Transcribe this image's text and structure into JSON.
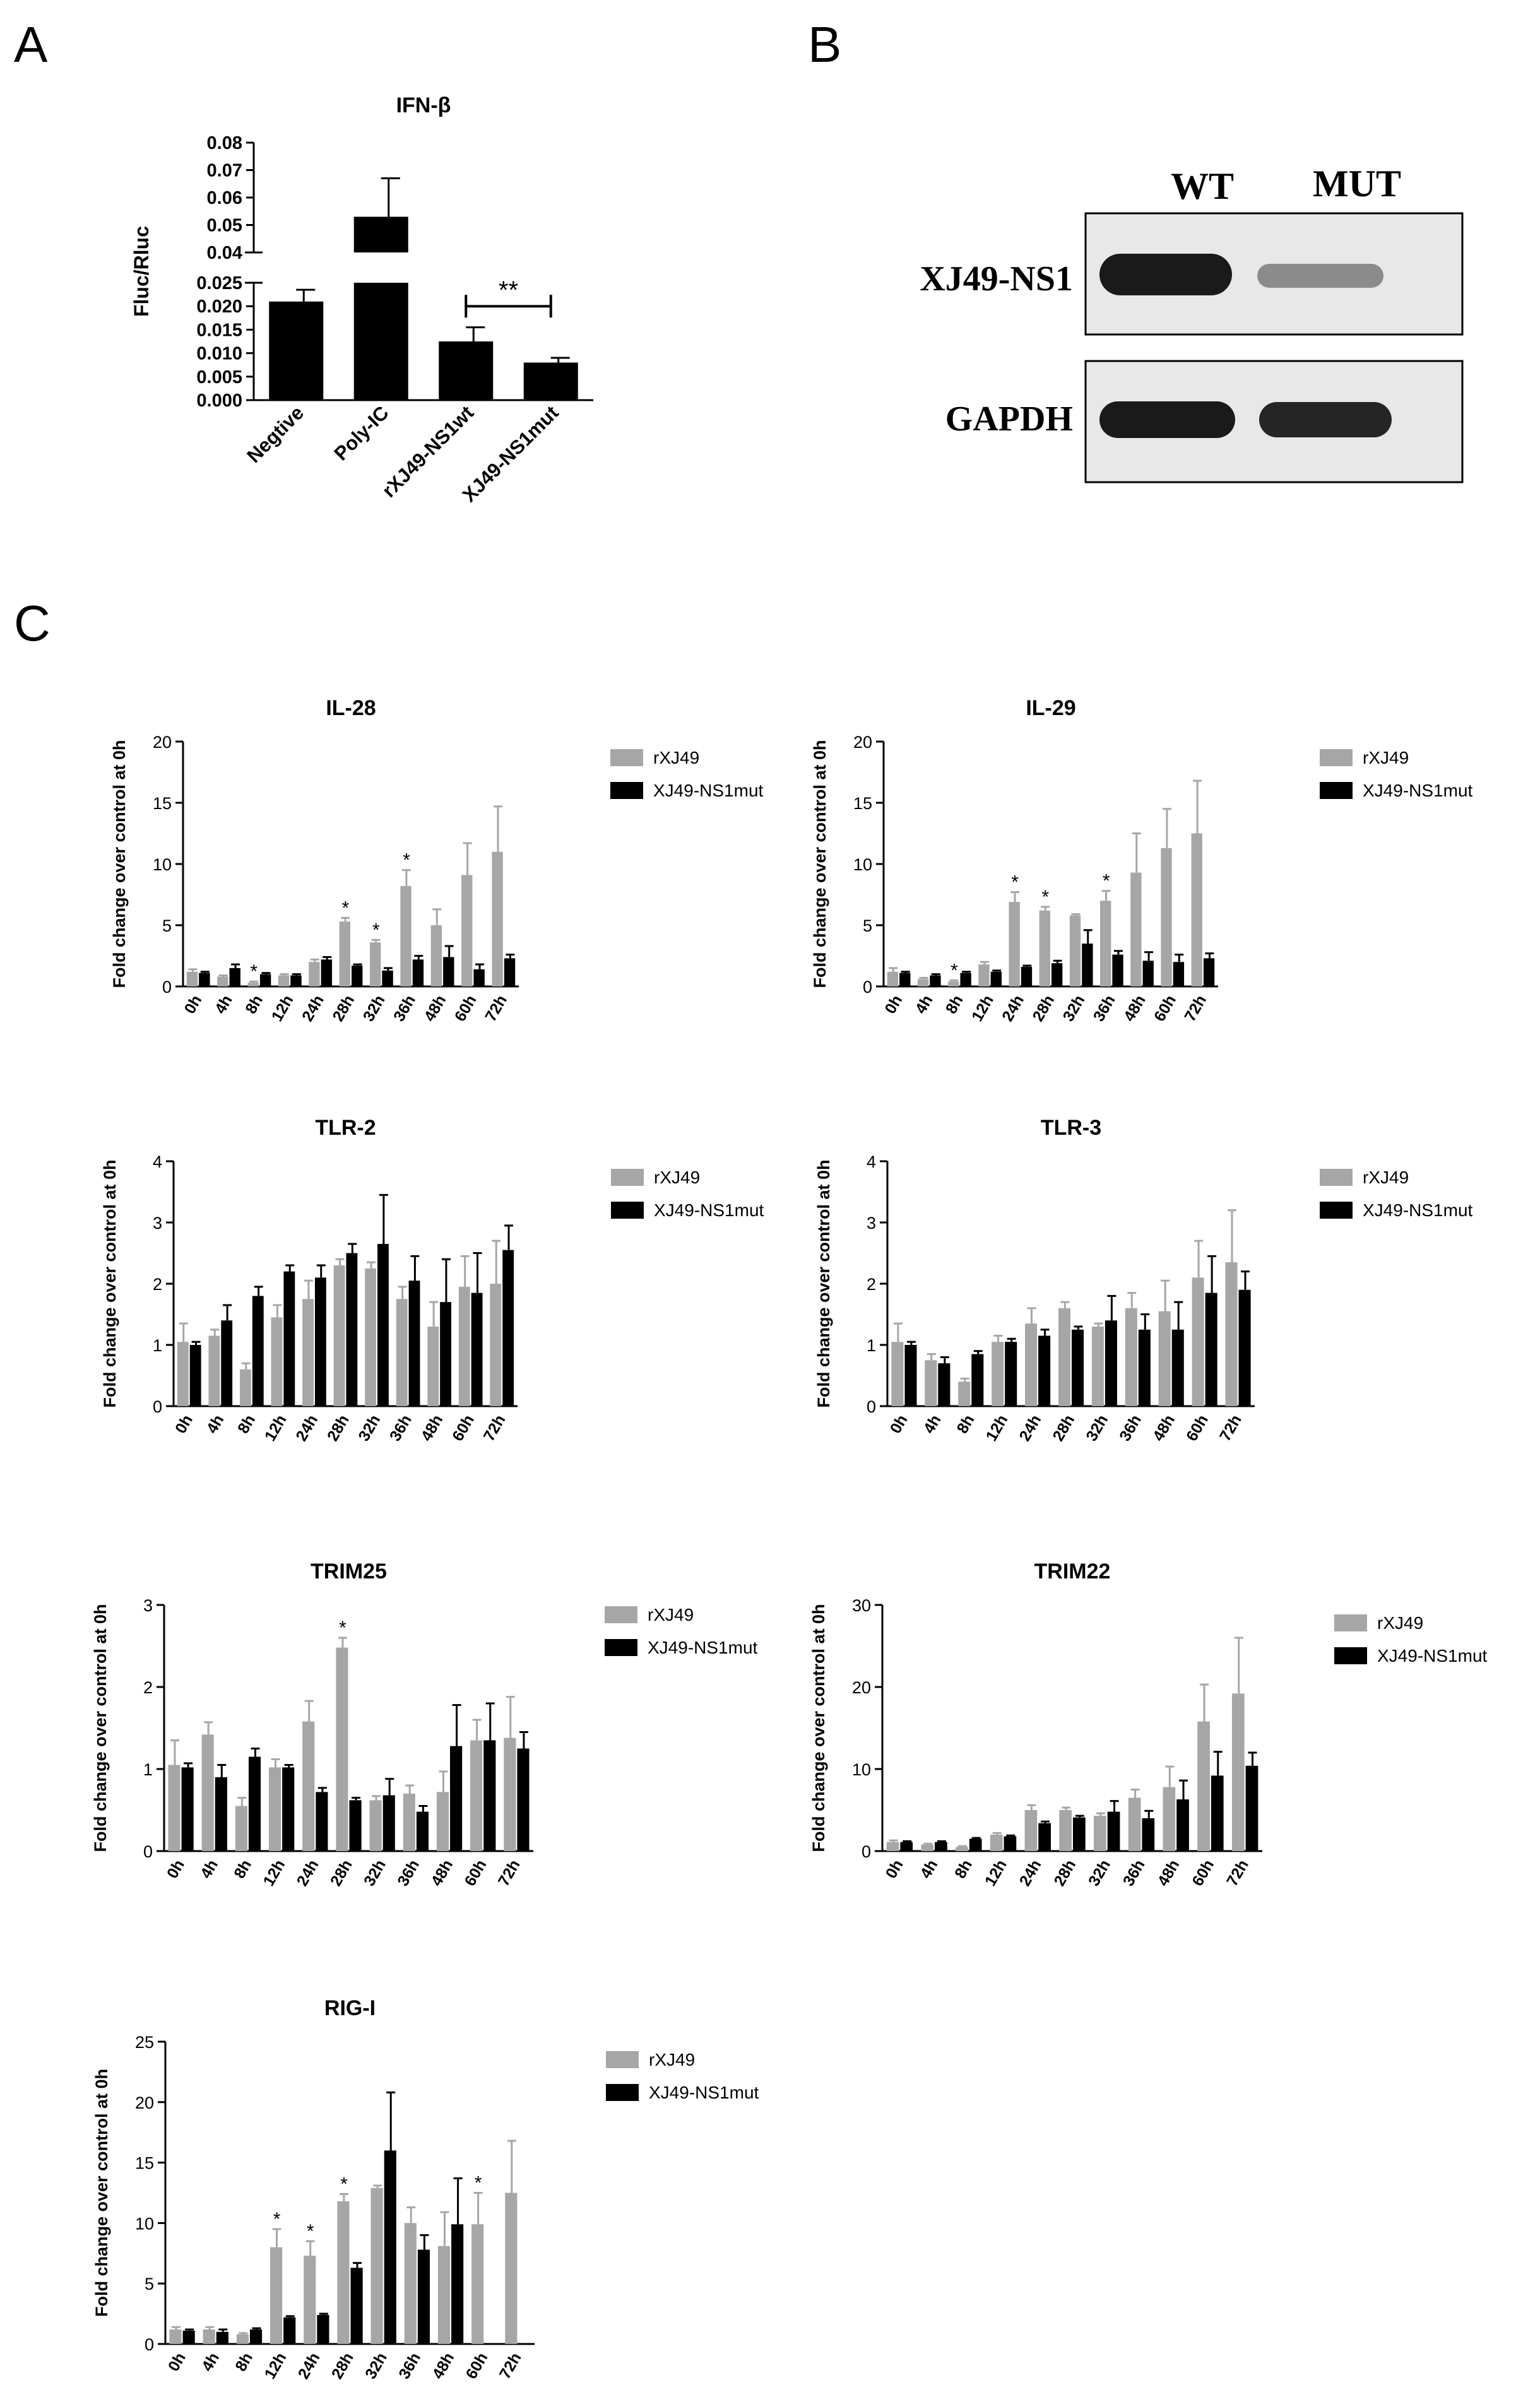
{
  "colors": {
    "series1": "#a6a6a6",
    "series2": "#000000",
    "axis": "#000000",
    "blot_bg": "#e8e8e8",
    "band": "#1a1a1a"
  },
  "panel_labels": {
    "a": "A",
    "b": "B",
    "c": "C"
  },
  "panel_b": {
    "lanes": [
      "WT",
      "MUT"
    ],
    "rows": [
      {
        "label": "XJ49-NS1",
        "intensity": [
          1.0,
          0.45
        ]
      },
      {
        "label": "GAPDH",
        "intensity": [
          1.0,
          0.95
        ]
      }
    ]
  },
  "chart_data": [
    {
      "id": "ifnb",
      "type": "bar",
      "title": "IFN-β",
      "ylabel": "Fluc/Rluc",
      "xlabel": "",
      "categories": [
        "Negtive",
        "Poly-IC",
        "rXJ49-NS1wt",
        "XJ49-NS1mut"
      ],
      "series": [
        {
          "name": "",
          "values": [
            0.021,
            0.053,
            0.0125,
            0.008
          ],
          "errors": [
            0.0025,
            0.014,
            0.003,
            0.001
          ]
        }
      ],
      "y_axis_break": {
        "lower": {
          "ylim": [
            0,
            0.025
          ],
          "ticks": [
            "0.000",
            "0.005",
            "0.010",
            "0.015",
            "0.020",
            "0.025"
          ]
        },
        "upper": {
          "ylim": [
            0.04,
            0.08
          ],
          "ticks": [
            "0.04",
            "0.05",
            "0.06",
            "0.07",
            "0.08"
          ]
        }
      },
      "significance": [
        {
          "from": 2,
          "to": 3,
          "label": "**"
        }
      ]
    },
    {
      "id": "il28",
      "type": "bar",
      "title": "IL-28",
      "ylabel": "Fold change over control at 0h",
      "xlabel": "",
      "ylim": [
        0,
        20
      ],
      "yticks": [
        "0",
        "5",
        "10",
        "15",
        "20"
      ],
      "categories": [
        "0h",
        "4h",
        "8h",
        "12h",
        "24h",
        "28h",
        "32h",
        "36h",
        "48h",
        "60h",
        "72h"
      ],
      "series": [
        {
          "name": "rXJ49",
          "values": [
            1.2,
            0.8,
            0.3,
            0.9,
            2.0,
            5.3,
            3.6,
            8.2,
            5.0,
            9.1,
            11.0
          ],
          "errors": [
            0.2,
            0.1,
            0.1,
            0.1,
            0.2,
            0.3,
            0.2,
            1.3,
            1.3,
            2.6,
            3.7
          ]
        },
        {
          "name": "XJ49-NS1mut",
          "values": [
            1.1,
            1.5,
            1.0,
            0.9,
            2.2,
            1.7,
            1.3,
            2.2,
            2.4,
            1.4,
            2.3
          ],
          "errors": [
            0.1,
            0.3,
            0.1,
            0.1,
            0.2,
            0.1,
            0.2,
            0.3,
            0.9,
            0.4,
            0.3
          ]
        }
      ],
      "stars": [
        2,
        5,
        6,
        7
      ],
      "star_label": "*"
    },
    {
      "id": "il29",
      "type": "bar",
      "title": "IL-29",
      "ylabel": "Fold change over control at 0h",
      "xlabel": "",
      "ylim": [
        0,
        20
      ],
      "yticks": [
        "0",
        "5",
        "10",
        "15",
        "20"
      ],
      "categories": [
        "0h",
        "4h",
        "8h",
        "12h",
        "24h",
        "28h",
        "32h",
        "36h",
        "48h",
        "60h",
        "72h"
      ],
      "series": [
        {
          "name": "rXJ49",
          "values": [
            1.2,
            0.6,
            0.4,
            1.8,
            6.9,
            6.2,
            5.8,
            7.0,
            9.3,
            11.3,
            12.5
          ],
          "errors": [
            0.3,
            0.1,
            0.1,
            0.2,
            0.8,
            0.3,
            0.1,
            0.8,
            3.2,
            3.2,
            4.3
          ]
        },
        {
          "name": "XJ49-NS1mut",
          "values": [
            1.1,
            0.9,
            1.1,
            1.2,
            1.6,
            1.9,
            3.5,
            2.6,
            2.1,
            2.0,
            2.3
          ],
          "errors": [
            0.1,
            0.1,
            0.1,
            0.1,
            0.1,
            0.2,
            1.1,
            0.3,
            0.7,
            0.6,
            0.4
          ]
        }
      ],
      "stars": [
        2,
        4,
        5,
        7
      ],
      "star_label": "*"
    },
    {
      "id": "tlr2",
      "type": "bar",
      "title": "TLR-2",
      "ylabel": "Fold change over control at 0h",
      "xlabel": "",
      "ylim": [
        0,
        4
      ],
      "yticks": [
        "0",
        "1",
        "2",
        "3",
        "4"
      ],
      "categories": [
        "0h",
        "4h",
        "8h",
        "12h",
        "24h",
        "28h",
        "32h",
        "36h",
        "48h",
        "60h",
        "72h"
      ],
      "series": [
        {
          "name": "rXJ49",
          "values": [
            1.05,
            1.15,
            0.6,
            1.45,
            1.75,
            2.3,
            2.25,
            1.75,
            1.3,
            1.95,
            2.0
          ],
          "errors": [
            0.3,
            0.1,
            0.1,
            0.2,
            0.3,
            0.1,
            0.1,
            0.2,
            0.4,
            0.5,
            0.7
          ]
        },
        {
          "name": "XJ49-NS1mut",
          "values": [
            1.0,
            1.4,
            1.8,
            2.2,
            2.1,
            2.5,
            2.65,
            2.05,
            1.7,
            1.85,
            2.55
          ],
          "errors": [
            0.05,
            0.25,
            0.15,
            0.1,
            0.2,
            0.15,
            0.8,
            0.4,
            0.7,
            0.65,
            0.4
          ]
        }
      ]
    },
    {
      "id": "tlr3",
      "type": "bar",
      "title": "TLR-3",
      "ylabel": "Fold change over control at 0h",
      "xlabel": "",
      "ylim": [
        0,
        4
      ],
      "yticks": [
        "0",
        "1",
        "2",
        "3",
        "4"
      ],
      "categories": [
        "0h",
        "4h",
        "8h",
        "12h",
        "24h",
        "28h",
        "32h",
        "36h",
        "48h",
        "60h",
        "72h"
      ],
      "series": [
        {
          "name": "rXJ49",
          "values": [
            1.05,
            0.75,
            0.4,
            1.05,
            1.35,
            1.6,
            1.3,
            1.6,
            1.55,
            2.1,
            2.35
          ],
          "errors": [
            0.3,
            0.1,
            0.05,
            0.1,
            0.25,
            0.1,
            0.05,
            0.25,
            0.5,
            0.6,
            0.85
          ]
        },
        {
          "name": "XJ49-NS1mut",
          "values": [
            1.0,
            0.7,
            0.85,
            1.05,
            1.15,
            1.25,
            1.4,
            1.25,
            1.25,
            1.85,
            1.9
          ],
          "errors": [
            0.05,
            0.1,
            0.05,
            0.05,
            0.1,
            0.05,
            0.4,
            0.25,
            0.45,
            0.6,
            0.3
          ]
        }
      ]
    },
    {
      "id": "trim25",
      "type": "bar",
      "title": "TRIM25",
      "ylabel": "Fold change over control at 0h",
      "xlabel": "",
      "ylim": [
        0,
        3
      ],
      "yticks": [
        "0",
        "1",
        "2",
        "3"
      ],
      "categories": [
        "0h",
        "4h",
        "8h",
        "12h",
        "24h",
        "28h",
        "32h",
        "36h",
        "48h",
        "60h",
        "72h"
      ],
      "series": [
        {
          "name": "rXJ49",
          "values": [
            1.05,
            1.42,
            0.55,
            1.02,
            1.58,
            2.48,
            0.62,
            0.7,
            0.72,
            1.35,
            1.38
          ],
          "errors": [
            0.3,
            0.15,
            0.1,
            0.1,
            0.25,
            0.12,
            0.05,
            0.1,
            0.25,
            0.25,
            0.5
          ]
        },
        {
          "name": "XJ49-NS1mut",
          "values": [
            1.02,
            0.9,
            1.15,
            1.02,
            0.72,
            0.62,
            0.68,
            0.48,
            1.28,
            1.35,
            1.25
          ],
          "errors": [
            0.05,
            0.15,
            0.1,
            0.03,
            0.05,
            0.03,
            0.2,
            0.07,
            0.5,
            0.45,
            0.2
          ]
        }
      ],
      "stars": [
        5
      ],
      "star_label": "*"
    },
    {
      "id": "trim22",
      "type": "bar",
      "title": "TRIM22",
      "ylabel": "Fold change over control at 0h",
      "xlabel": "",
      "ylim": [
        0,
        30
      ],
      "yticks": [
        "0",
        "10",
        "20",
        "30"
      ],
      "categories": [
        "0h",
        "4h",
        "8h",
        "12h",
        "24h",
        "28h",
        "32h",
        "36h",
        "48h",
        "60h",
        "72h"
      ],
      "series": [
        {
          "name": "rXJ49",
          "values": [
            1.1,
            0.8,
            0.5,
            2.0,
            5.0,
            5.0,
            4.3,
            6.5,
            7.8,
            15.8,
            19.2
          ],
          "errors": [
            0.2,
            0.1,
            0.1,
            0.2,
            0.6,
            0.3,
            0.3,
            1.0,
            2.5,
            4.5,
            6.8
          ]
        },
        {
          "name": "XJ49-NS1mut",
          "values": [
            1.1,
            1.1,
            1.5,
            1.8,
            3.4,
            4.1,
            4.8,
            4.0,
            6.3,
            9.2,
            10.4
          ],
          "errors": [
            0.1,
            0.1,
            0.1,
            0.1,
            0.2,
            0.2,
            1.3,
            0.9,
            2.3,
            2.9,
            1.6
          ]
        }
      ]
    },
    {
      "id": "rigi",
      "type": "bar",
      "title": "RIG-I",
      "ylabel": "Fold change over control at 0h",
      "xlabel": "",
      "ylim": [
        0,
        25
      ],
      "yticks": [
        "0",
        "5",
        "10",
        "15",
        "20",
        "25"
      ],
      "categories": [
        "0h",
        "4h",
        "8h",
        "12h",
        "24h",
        "28h",
        "32h",
        "36h",
        "48h",
        "60h",
        "72h"
      ],
      "series": [
        {
          "name": "rXJ49",
          "values": [
            1.2,
            1.2,
            0.8,
            8.0,
            7.3,
            11.8,
            12.9,
            10.0,
            8.1,
            9.9,
            12.5
          ],
          "errors": [
            0.2,
            0.2,
            0.1,
            1.5,
            1.2,
            0.6,
            0.2,
            1.3,
            2.8,
            2.6,
            4.3
          ]
        },
        {
          "name": "XJ49-NS1mut",
          "values": [
            1.1,
            1.0,
            1.2,
            2.2,
            2.4,
            6.3,
            16.0,
            7.8,
            9.9,
            0,
            0
          ],
          "errors": [
            0.1,
            0.2,
            0.1,
            0.1,
            0.1,
            0.4,
            4.8,
            1.2,
            3.8,
            0,
            0
          ]
        }
      ],
      "stars": [
        3,
        4,
        5,
        9
      ],
      "star_label": "*"
    }
  ]
}
